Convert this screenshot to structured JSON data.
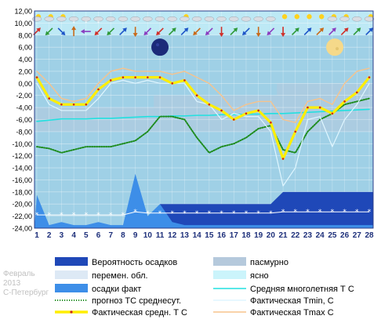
{
  "chart_data": {
    "type": "line",
    "ylim": [
      -24,
      12
    ],
    "yticks": [
      "12,00",
      "10,00",
      "8,00",
      "6,00",
      "4,00",
      "2,00",
      "0,00",
      "-2,00",
      "-4,00",
      "-6,00",
      "-8,00",
      "-10,00",
      "-12,00",
      "-14,00",
      "-16,00",
      "-18,00",
      "-20,00",
      "-22,00",
      "-24,00"
    ],
    "x": [
      1,
      2,
      3,
      4,
      5,
      6,
      7,
      8,
      9,
      10,
      11,
      12,
      13,
      14,
      15,
      16,
      17,
      18,
      19,
      20,
      21,
      22,
      23,
      24,
      25,
      26,
      27,
      28
    ],
    "grid": true,
    "colors": {
      "plot_bg": "#9fd0e6",
      "overcast": "#b5c9dc",
      "clear": "#cbf4fb",
      "precip_prob": "#1f48b8",
      "precip_fact": "#3d8ee8",
      "tc_avg": "#22e0e0",
      "forecast": "#1e8c1e",
      "tmean": "#ffee00",
      "tmin": "#dff6ff",
      "tmax": "#f7c38c",
      "moon": "#1b2a7a",
      "moon_full": "#f5d98a"
    },
    "sky_cover_bands": [
      {
        "from": 1,
        "to": 10.5,
        "level": "low"
      },
      {
        "from": 10.5,
        "to": 20.5,
        "level": "mid"
      },
      {
        "from": 20.5,
        "to": 28.5,
        "level": "high"
      }
    ],
    "precip_probability": [
      -20,
      -24,
      -24,
      -24,
      -24,
      -24,
      -24,
      -24,
      -24,
      -24,
      -20,
      -20,
      -20,
      -20,
      -20,
      -20,
      -20,
      -20,
      -20,
      -20,
      -18,
      -18,
      -18,
      -18,
      -18,
      -18,
      -18,
      -18
    ],
    "precip_fact": [
      -18.5,
      -23.5,
      -23,
      -23.5,
      -23.5,
      -23,
      -23.5,
      -23.5,
      -15,
      -22,
      -20,
      -23,
      -23.5,
      -23.5,
      -23.5,
      -23.5,
      -23.5,
      -23.5,
      -23.5,
      -23.5,
      -23.5,
      -23.5,
      -23.5,
      -23.5,
      -23.5,
      -23.5,
      -23.5,
      -23.5
    ],
    "series": [
      {
        "name": "Средняя многолетняя Т С",
        "key": "tc_avg",
        "values": [
          -6.3,
          -6.1,
          -5.9,
          -5.9,
          -5.9,
          -5.8,
          -5.8,
          -5.7,
          -5.6,
          -5.5,
          -5.5,
          -5.4,
          -5.4,
          -5.3,
          -5.3,
          -5.2,
          -5.2,
          -5.1,
          -5.1,
          -5.0,
          -5.0,
          -4.9,
          -4.8,
          -4.7,
          -4.6,
          -4.5,
          -4.4,
          -4.3
        ]
      },
      {
        "name": "прогноз ТС среднесут.",
        "key": "forecast",
        "values": [
          -10.5,
          -10.8,
          -11.5,
          -11.0,
          -10.5,
          -10.5,
          -10.5,
          -10.0,
          -9.5,
          -8.0,
          -5.5,
          -5.5,
          -6.0,
          -9.0,
          -11.5,
          -10.5,
          -10.0,
          -9.0,
          -7.5,
          -7.0,
          -11.0,
          -11.5,
          -8.0,
          -6.0,
          -5.0,
          -3.5,
          -3.0,
          -2.5
        ]
      },
      {
        "name": "Фактическая Tmin, C",
        "key": "tmin",
        "values": [
          0.0,
          -3.5,
          -4.5,
          -4.5,
          -4.5,
          -2.5,
          0.0,
          0.5,
          0.0,
          0.5,
          0.0,
          0.0,
          0.0,
          -3.0,
          -3.5,
          -6.0,
          -5.0,
          -5.5,
          -5.5,
          -8.0,
          -17.0,
          -14.0,
          -6.0,
          -5.5,
          -10.5,
          -6.0,
          -3.5,
          0.0
        ]
      },
      {
        "name": "Фактическая Tmax C",
        "key": "tmax",
        "values": [
          2.0,
          0.0,
          -2.5,
          -3.0,
          -2.5,
          0.0,
          2.0,
          2.5,
          2.0,
          2.0,
          2.0,
          1.5,
          2.0,
          1.0,
          0.0,
          -2.0,
          -4.5,
          -3.5,
          -3.0,
          -3.0,
          -6.0,
          -6.5,
          -3.0,
          -2.5,
          -3.5,
          0.0,
          2.0,
          2.5
        ]
      },
      {
        "name": "Фактическая средн. Т С",
        "key": "tmean",
        "values": [
          1.0,
          -2.5,
          -3.5,
          -3.5,
          -3.5,
          -1.0,
          0.5,
          1.0,
          1.0,
          1.0,
          1.0,
          0.0,
          0.5,
          -2.0,
          -3.5,
          -4.5,
          -6.0,
          -5.0,
          -4.5,
          -6.5,
          -12.5,
          -8.0,
          -4.0,
          -4.0,
          -5.0,
          -3.0,
          -1.5,
          1.0
        ]
      }
    ],
    "snow_depth": [
      -21.8,
      -21.8,
      -21.8,
      -21.8,
      -21.8,
      -21.8,
      -21.8,
      -21.8,
      -21.3,
      -21.5,
      -21.5,
      -21.5,
      -21.5,
      -21.5,
      -21.5,
      -21.5,
      -21.5,
      -21.5,
      -21.5,
      -21.5,
      -21.3,
      -21.3,
      -21.3,
      -21.3,
      -21.3,
      -21.3,
      -21.3,
      -21.3
    ],
    "moon_phases": [
      {
        "x": 11,
        "y": 6.0,
        "phase": "new"
      },
      {
        "x": 25.2,
        "y": 6.0,
        "phase": "full"
      }
    ],
    "wind_arrows": [
      "NE",
      "SW",
      "SE",
      "N",
      "W",
      "SW",
      "SW",
      "NE",
      "S",
      "SW",
      "SW",
      "NE",
      "NE",
      "SW",
      "SW",
      "S",
      "NE",
      "SW",
      "S",
      "SW",
      "S",
      "NE",
      "NE",
      "NE",
      "NE",
      "NE",
      "NE",
      "NE"
    ],
    "weather_icons": [
      "cloud-sun",
      "cloud-sun",
      "cloud-sun",
      "cloud-snow",
      "cloud-snow",
      "cloud-snow",
      "cloud",
      "cloud",
      "cloud",
      "cloud",
      "cloud",
      "cloud",
      "cloud-sun",
      "cloud",
      "cloud",
      "cloud",
      "cloud",
      "cloud",
      "cloud",
      "cloud",
      "sun",
      "sun",
      "sun",
      "sun",
      "cloud-sun",
      "cloud-sun",
      "cloud",
      "cloud-sun"
    ],
    "legend": [
      {
        "label": "Вероятность осадков",
        "kind": "rect",
        "key": "precip_prob",
        "col": 0
      },
      {
        "label": "пасмурно",
        "kind": "rect",
        "key": "overcast",
        "col": 1
      },
      {
        "label": "перемен. обл.",
        "kind": "rect",
        "key": "mixed",
        "col": 0
      },
      {
        "label": "ясно",
        "kind": "rect",
        "key": "clear",
        "col": 1
      },
      {
        "label": "осадки факт",
        "kind": "rect",
        "key": "precip_fact",
        "col": 0
      },
      {
        "label": "Средняя многолетняя Т С",
        "kind": "line",
        "key": "tc_avg",
        "col": 1
      },
      {
        "label": "прогноз ТС среднесут.",
        "kind": "dots",
        "key": "forecast",
        "col": 0
      },
      {
        "label": "Фактическая Tmin, C",
        "kind": "line",
        "key": "tmin",
        "col": 1
      },
      {
        "label": "Фактическая средн. Т С",
        "kind": "thick",
        "key": "tmean",
        "col": 0
      },
      {
        "label": "Фактическая Tmax C",
        "kind": "line",
        "key": "tmax",
        "col": 1
      }
    ]
  },
  "side_label": {
    "month": "Февраль",
    "year": "2013",
    "city": "С-Петербург"
  }
}
